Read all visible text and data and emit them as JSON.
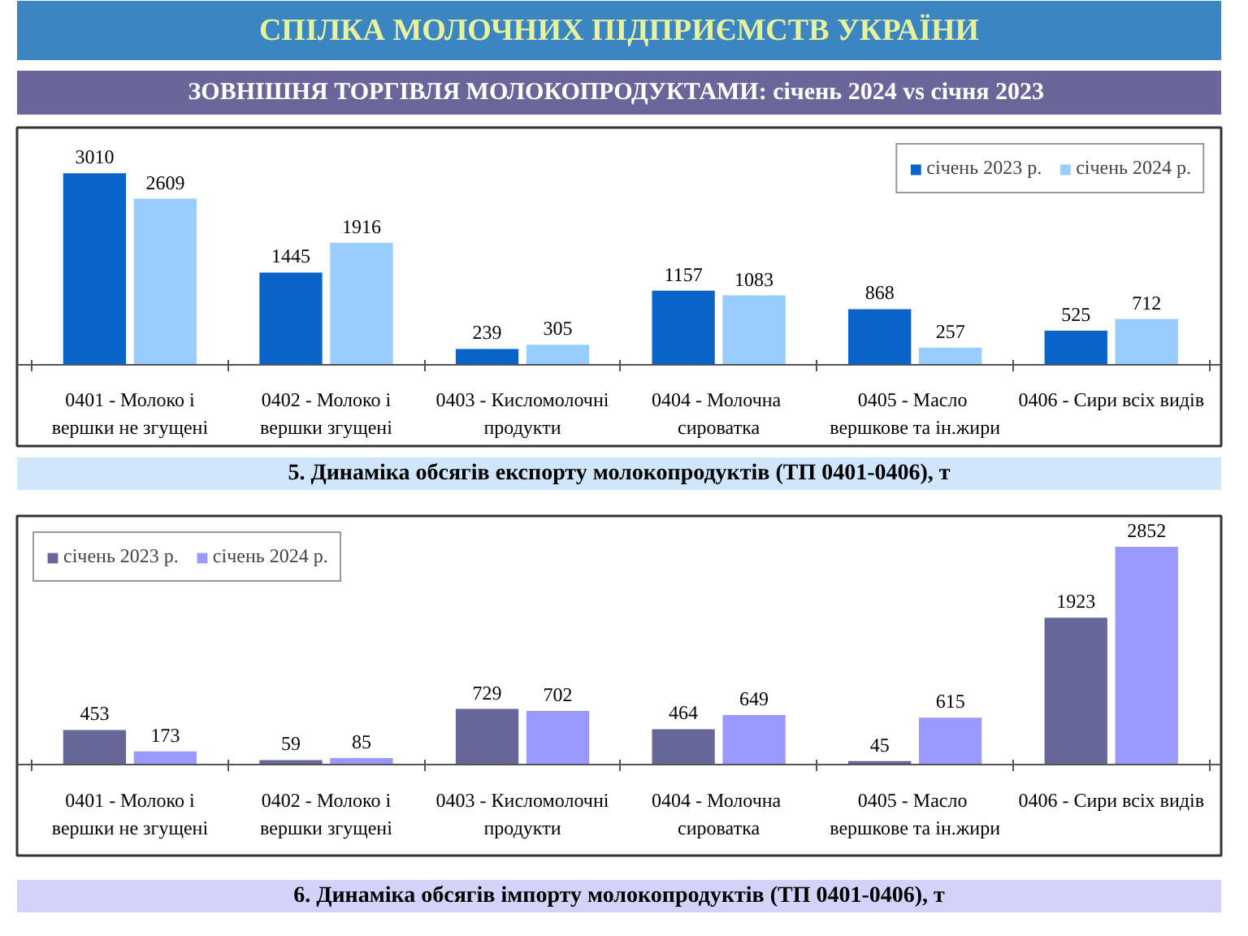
{
  "chart_data": [
    {
      "type": "other",
      "title": "СПІЛКА МОЛОЧНИХ ПІДПРИЄМСТВ УКРАЇНИ",
      "subtitle": "ЗОВНІШНЯ ТОРГІВЛЯ МОЛОКОПРОДУКТАМИ:  січень 2024 vs січня 2023"
    },
    {
      "type": "bar",
      "title": "5. Динаміка обсягів експорту молокопродуктів (ТП 0401-0406), т",
      "categories": [
        "0401 - Молоко і\nвершки не згущені",
        "0402 - Молоко і\nвершки згущені",
        "0403 - Кисломолочні\nпродукти",
        "0404 -  Молочна\nсироватка",
        "0405 -  Масло\nвершкове та ін.жири",
        "0406 - Сири всіх видів"
      ],
      "series": [
        {
          "name": "січень 2023 р.",
          "color": "#0a63c9",
          "values": [
            3010,
            1445,
            239,
            1157,
            868,
            525
          ]
        },
        {
          "name": "січень 2024 р.",
          "color": "#99ccff",
          "values": [
            2609,
            1916,
            305,
            1083,
            257,
            712
          ]
        }
      ],
      "data_labels": true,
      "legend": "top right"
    },
    {
      "type": "bar",
      "title": "6. Динаміка обсягів імпорту молокопродуктів (ТП 0401-0406), т",
      "categories": [
        "0401 - Молоко і\nвершки не згущені",
        "0402 - Молоко і\nвершки згущені",
        "0403 - Кисломолочні\nпродукти",
        "0404 -  Молочна\nсироватка",
        "0405 -  Масло\nвершкове та ін.жири",
        "0406 - Сири всіх видів"
      ],
      "series": [
        {
          "name": "січень 2023 р.",
          "color": "#666699",
          "values": [
            453,
            59,
            729,
            464,
            45,
            1923
          ]
        },
        {
          "name": "січень 2024 р.",
          "color": "#9999ff",
          "values": [
            173,
            85,
            702,
            649,
            615,
            2852
          ]
        }
      ],
      "data_labels": true,
      "legend": "top left"
    }
  ]
}
